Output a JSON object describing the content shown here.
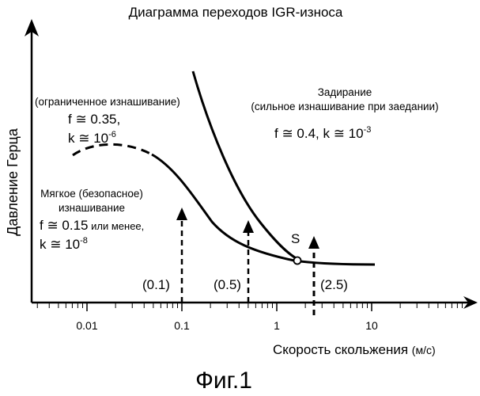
{
  "title": "Диаграмма переходов IGR-износа",
  "caption": "Фиг.1",
  "axes": {
    "xlabel": "Скорость скольжения",
    "xunit": "(м/с)",
    "ylabel": "Давление Герца",
    "x_scale": "log",
    "xlim": [
      0.003,
      30
    ]
  },
  "x_ticks": [
    {
      "value": 0.01,
      "label": "0.01"
    },
    {
      "value": 0.1,
      "label": "0.1"
    },
    {
      "value": 1,
      "label": "1"
    },
    {
      "value": 10,
      "label": "10"
    }
  ],
  "regions": {
    "limited": {
      "name": "(ограниченное изнашивание)",
      "f": "f ≅ 0.35,",
      "k_prefix": "k ≅ 10",
      "k_exp": "-6"
    },
    "scuffing": {
      "name": "Задирание",
      "desc": "(сильное изнашивание при заедании)",
      "fk_prefix": "f ≅ 0.4,  k ≅ 10",
      "k_exp": "-3"
    },
    "mild": {
      "name1": "Мягкое (безопасное)",
      "name2": "изнашивание",
      "f_main": "f ≅ 0.15",
      "f_suffix": " или менее,",
      "k_prefix": "k ≅ 10",
      "k_exp": "-8"
    }
  },
  "point_label": "S",
  "velocity_markers": [
    {
      "value": 0.1,
      "label": "(0.1)"
    },
    {
      "value": 0.5,
      "label": "(0.5)"
    },
    {
      "value": 2.5,
      "label": "(2.5)"
    }
  ]
}
